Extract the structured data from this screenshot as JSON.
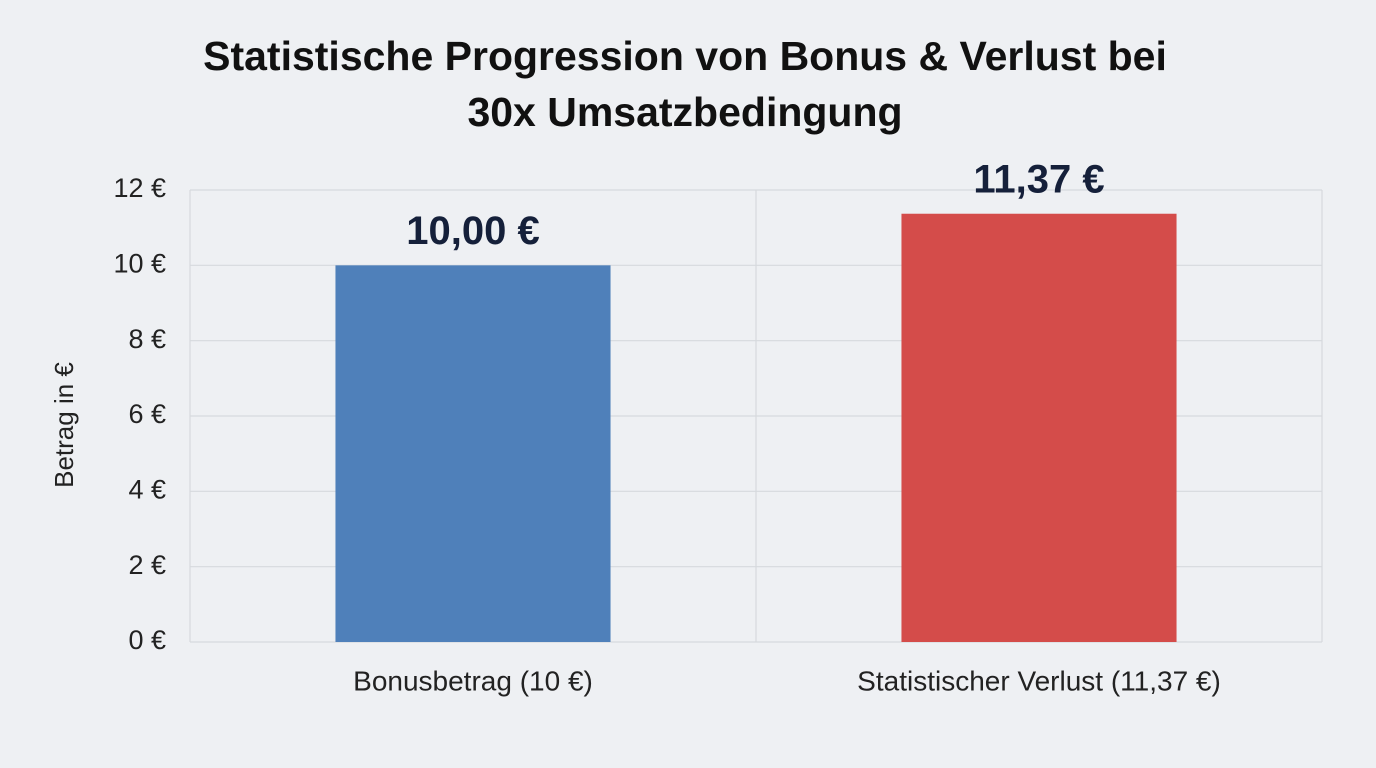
{
  "chart_data": {
    "type": "bar",
    "title": "Statistische Progression von Bonus & Verlust bei 30x Umsatzbedingung",
    "y_label": "Betrag in €",
    "categories": [
      "Bonusbetrag (10 €)",
      "Statistischer Verlust (11,37 €)"
    ],
    "values": [
      10.0,
      11.37
    ],
    "value_labels": [
      "10,00 €",
      "11,37 €"
    ],
    "colors": [
      "#4f80ba",
      "#d44c4a"
    ],
    "ylim": [
      0,
      12
    ],
    "yticks": [
      {
        "value": 0,
        "label": "0 €"
      },
      {
        "value": 2,
        "label": "2 €"
      },
      {
        "value": 4,
        "label": "4 €"
      },
      {
        "value": 6,
        "label": "6 €"
      },
      {
        "value": 8,
        "label": "8 €"
      },
      {
        "value": 10,
        "label": "10 €"
      },
      {
        "value": 12,
        "label": "12 €"
      }
    ],
    "grid": true
  }
}
